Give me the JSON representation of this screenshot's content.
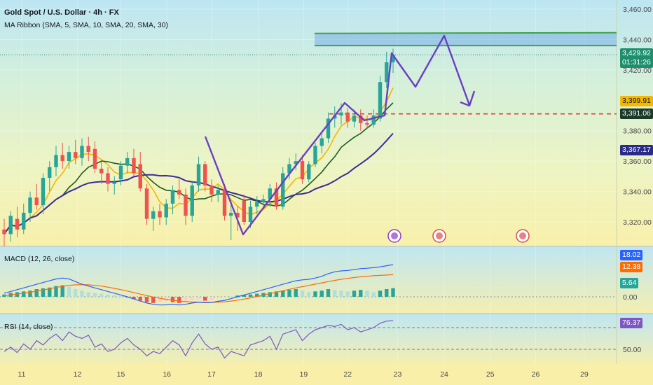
{
  "header": {
    "symbol_title": "Gold Spot / U.S. Dollar · 4h · FX",
    "ma_ribbon_label": "MA Ribbon (SMA, 5, SMA, 10, SMA, 20, SMA, 30)"
  },
  "price_axis": {
    "ticks": [
      "3,460.00",
      "3,440.00",
      "3,420.00",
      "3,380.00",
      "3,360.00",
      "3,340.00",
      "3,320.00"
    ],
    "last_price": "3,429.92",
    "countdown": "01:31:26",
    "ma_values": [
      "3,399.91",
      "3,391.06",
      "3,367.17"
    ]
  },
  "macd": {
    "label": "MACD (12, 26, close)",
    "values": [
      "18.02",
      "12.38",
      "5.64"
    ],
    "zero_tick": "0.00"
  },
  "rsi": {
    "label": "RSI (14, close)",
    "value": "76.37",
    "tick_50": "50.00"
  },
  "time_axis": [
    "11",
    "12",
    "15",
    "16",
    "17",
    "18",
    "19",
    "22",
    "23",
    "24",
    "25",
    "26",
    "29"
  ],
  "colors": {
    "up": "#26a69a",
    "down": "#ef5350",
    "projection": "#6a3fc4",
    "ma_fast": "#f5b800",
    "ma_mid": "#1b5e20",
    "ma_slow": "#3f2a9e",
    "macd_line": "#2962ff",
    "signal_line": "#ff6d00",
    "rsi_line": "#7e57c2",
    "resistance_zone": "#4a90e2",
    "support_line": "#e53935"
  },
  "chart_data": [
    {
      "type": "candlestick",
      "title": "Gold Spot / U.S. Dollar · 4h · FX",
      "timeframe": "4h",
      "ylim": [
        3305,
        3465
      ],
      "candles": [
        {
          "o": 3315,
          "h": 3322,
          "l": 3304,
          "c": 3312
        },
        {
          "o": 3312,
          "h": 3327,
          "l": 3307,
          "c": 3324
        },
        {
          "o": 3322,
          "h": 3330,
          "l": 3310,
          "c": 3315
        },
        {
          "o": 3315,
          "h": 3332,
          "l": 3312,
          "c": 3326
        },
        {
          "o": 3326,
          "h": 3340,
          "l": 3320,
          "c": 3336
        },
        {
          "o": 3336,
          "h": 3345,
          "l": 3328,
          "c": 3331
        },
        {
          "o": 3331,
          "h": 3352,
          "l": 3325,
          "c": 3349
        },
        {
          "o": 3349,
          "h": 3360,
          "l": 3340,
          "c": 3356
        },
        {
          "o": 3356,
          "h": 3370,
          "l": 3350,
          "c": 3364
        },
        {
          "o": 3364,
          "h": 3372,
          "l": 3355,
          "c": 3360
        },
        {
          "o": 3360,
          "h": 3370,
          "l": 3355,
          "c": 3366
        },
        {
          "o": 3366,
          "h": 3374,
          "l": 3358,
          "c": 3362
        },
        {
          "o": 3362,
          "h": 3375,
          "l": 3357,
          "c": 3370
        },
        {
          "o": 3370,
          "h": 3376,
          "l": 3360,
          "c": 3366
        },
        {
          "o": 3368,
          "h": 3373,
          "l": 3352,
          "c": 3355
        },
        {
          "o": 3355,
          "h": 3360,
          "l": 3345,
          "c": 3352
        },
        {
          "o": 3352,
          "h": 3356,
          "l": 3340,
          "c": 3345
        },
        {
          "o": 3345,
          "h": 3350,
          "l": 3338,
          "c": 3346
        },
        {
          "o": 3348,
          "h": 3360,
          "l": 3344,
          "c": 3357
        },
        {
          "o": 3357,
          "h": 3366,
          "l": 3352,
          "c": 3362
        },
        {
          "o": 3362,
          "h": 3368,
          "l": 3350,
          "c": 3352
        },
        {
          "o": 3358,
          "h": 3366,
          "l": 3340,
          "c": 3342
        },
        {
          "o": 3342,
          "h": 3345,
          "l": 3318,
          "c": 3322
        },
        {
          "o": 3322,
          "h": 3330,
          "l": 3314,
          "c": 3327
        },
        {
          "o": 3327,
          "h": 3332,
          "l": 3318,
          "c": 3323
        },
        {
          "o": 3323,
          "h": 3335,
          "l": 3318,
          "c": 3332
        },
        {
          "o": 3332,
          "h": 3344,
          "l": 3325,
          "c": 3341
        },
        {
          "o": 3341,
          "h": 3348,
          "l": 3335,
          "c": 3338
        },
        {
          "o": 3338,
          "h": 3342,
          "l": 3318,
          "c": 3324
        },
        {
          "o": 3324,
          "h": 3347,
          "l": 3320,
          "c": 3344
        },
        {
          "o": 3344,
          "h": 3363,
          "l": 3340,
          "c": 3358
        },
        {
          "o": 3358,
          "h": 3360,
          "l": 3340,
          "c": 3344
        },
        {
          "o": 3344,
          "h": 3348,
          "l": 3333,
          "c": 3338
        },
        {
          "o": 3338,
          "h": 3344,
          "l": 3333,
          "c": 3341
        },
        {
          "o": 3341,
          "h": 3345,
          "l": 3321,
          "c": 3324
        },
        {
          "o": 3324,
          "h": 3334,
          "l": 3308,
          "c": 3326
        },
        {
          "o": 3326,
          "h": 3330,
          "l": 3314,
          "c": 3323
        },
        {
          "o": 3334,
          "h": 3338,
          "l": 3318,
          "c": 3320
        },
        {
          "o": 3320,
          "h": 3334,
          "l": 3316,
          "c": 3330
        },
        {
          "o": 3330,
          "h": 3337,
          "l": 3325,
          "c": 3333
        },
        {
          "o": 3333,
          "h": 3338,
          "l": 3329,
          "c": 3335
        },
        {
          "o": 3335,
          "h": 3345,
          "l": 3330,
          "c": 3342
        },
        {
          "o": 3342,
          "h": 3346,
          "l": 3328,
          "c": 3330
        },
        {
          "o": 3330,
          "h": 3356,
          "l": 3328,
          "c": 3352
        },
        {
          "o": 3352,
          "h": 3362,
          "l": 3348,
          "c": 3358
        },
        {
          "o": 3358,
          "h": 3365,
          "l": 3354,
          "c": 3360
        },
        {
          "o": 3360,
          "h": 3364,
          "l": 3345,
          "c": 3348
        },
        {
          "o": 3348,
          "h": 3360,
          "l": 3346,
          "c": 3358
        },
        {
          "o": 3358,
          "h": 3372,
          "l": 3356,
          "c": 3370
        },
        {
          "o": 3370,
          "h": 3378,
          "l": 3365,
          "c": 3375
        },
        {
          "o": 3375,
          "h": 3392,
          "l": 3372,
          "c": 3388
        },
        {
          "o": 3388,
          "h": 3396,
          "l": 3382,
          "c": 3390
        },
        {
          "o": 3390,
          "h": 3398,
          "l": 3384,
          "c": 3392
        },
        {
          "o": 3392,
          "h": 3395,
          "l": 3382,
          "c": 3386
        },
        {
          "o": 3386,
          "h": 3394,
          "l": 3382,
          "c": 3390
        },
        {
          "o": 3390,
          "h": 3394,
          "l": 3380,
          "c": 3385
        },
        {
          "o": 3385,
          "h": 3390,
          "l": 3381,
          "c": 3384
        },
        {
          "o": 3384,
          "h": 3394,
          "l": 3382,
          "c": 3390
        },
        {
          "o": 3388,
          "h": 3416,
          "l": 3386,
          "c": 3412
        },
        {
          "o": 3412,
          "h": 3432,
          "l": 3408,
          "c": 3425
        },
        {
          "o": 3425,
          "h": 3434,
          "l": 3418,
          "c": 3429.92
        }
      ],
      "moving_averages": [
        {
          "name": "SMA 5",
          "last": 3399.91
        },
        {
          "name": "SMA 10",
          "last": 3391.06
        },
        {
          "name": "SMA 20",
          "last": 3367.17
        }
      ],
      "annotations": {
        "resistance_zone": [
          3436,
          3444
        ],
        "support_level": 3391.06,
        "projection_path": [
          3429.92,
          3413,
          3442,
          3396
        ]
      },
      "x_tick_labels": [
        "11",
        "12",
        "15",
        "16",
        "17",
        "18",
        "19",
        "22",
        "23",
        "24",
        "25",
        "26",
        "29"
      ]
    },
    {
      "type": "bar",
      "title": "MACD (12, 26, close)",
      "histogram": [
        1.5,
        2.5,
        3,
        3.5,
        4,
        5,
        5.5,
        6,
        7,
        7.5,
        6.5,
        5,
        4,
        3,
        2.5,
        2,
        1.5,
        1,
        0.5,
        -0.5,
        -1.5,
        -2.5,
        -3.5,
        -4,
        -3.5,
        -3,
        -3.5,
        -4,
        -3,
        -2,
        -1.5,
        -2.5,
        -2,
        -1,
        -0.5,
        0.3,
        0.8,
        1.2,
        1.5,
        2,
        2.5,
        3,
        3.5,
        4,
        4.5,
        5,
        4,
        3,
        3.5,
        4,
        5,
        4.5,
        4,
        3.5,
        4,
        4.5,
        4,
        3,
        4,
        5,
        5.64
      ],
      "macd_last": 18.02,
      "signal_last": 12.38,
      "histogram_last": 5.64
    },
    {
      "type": "line",
      "title": "RSI (14, close)",
      "last": 76.37,
      "levels": [
        70,
        50
      ]
    }
  ]
}
